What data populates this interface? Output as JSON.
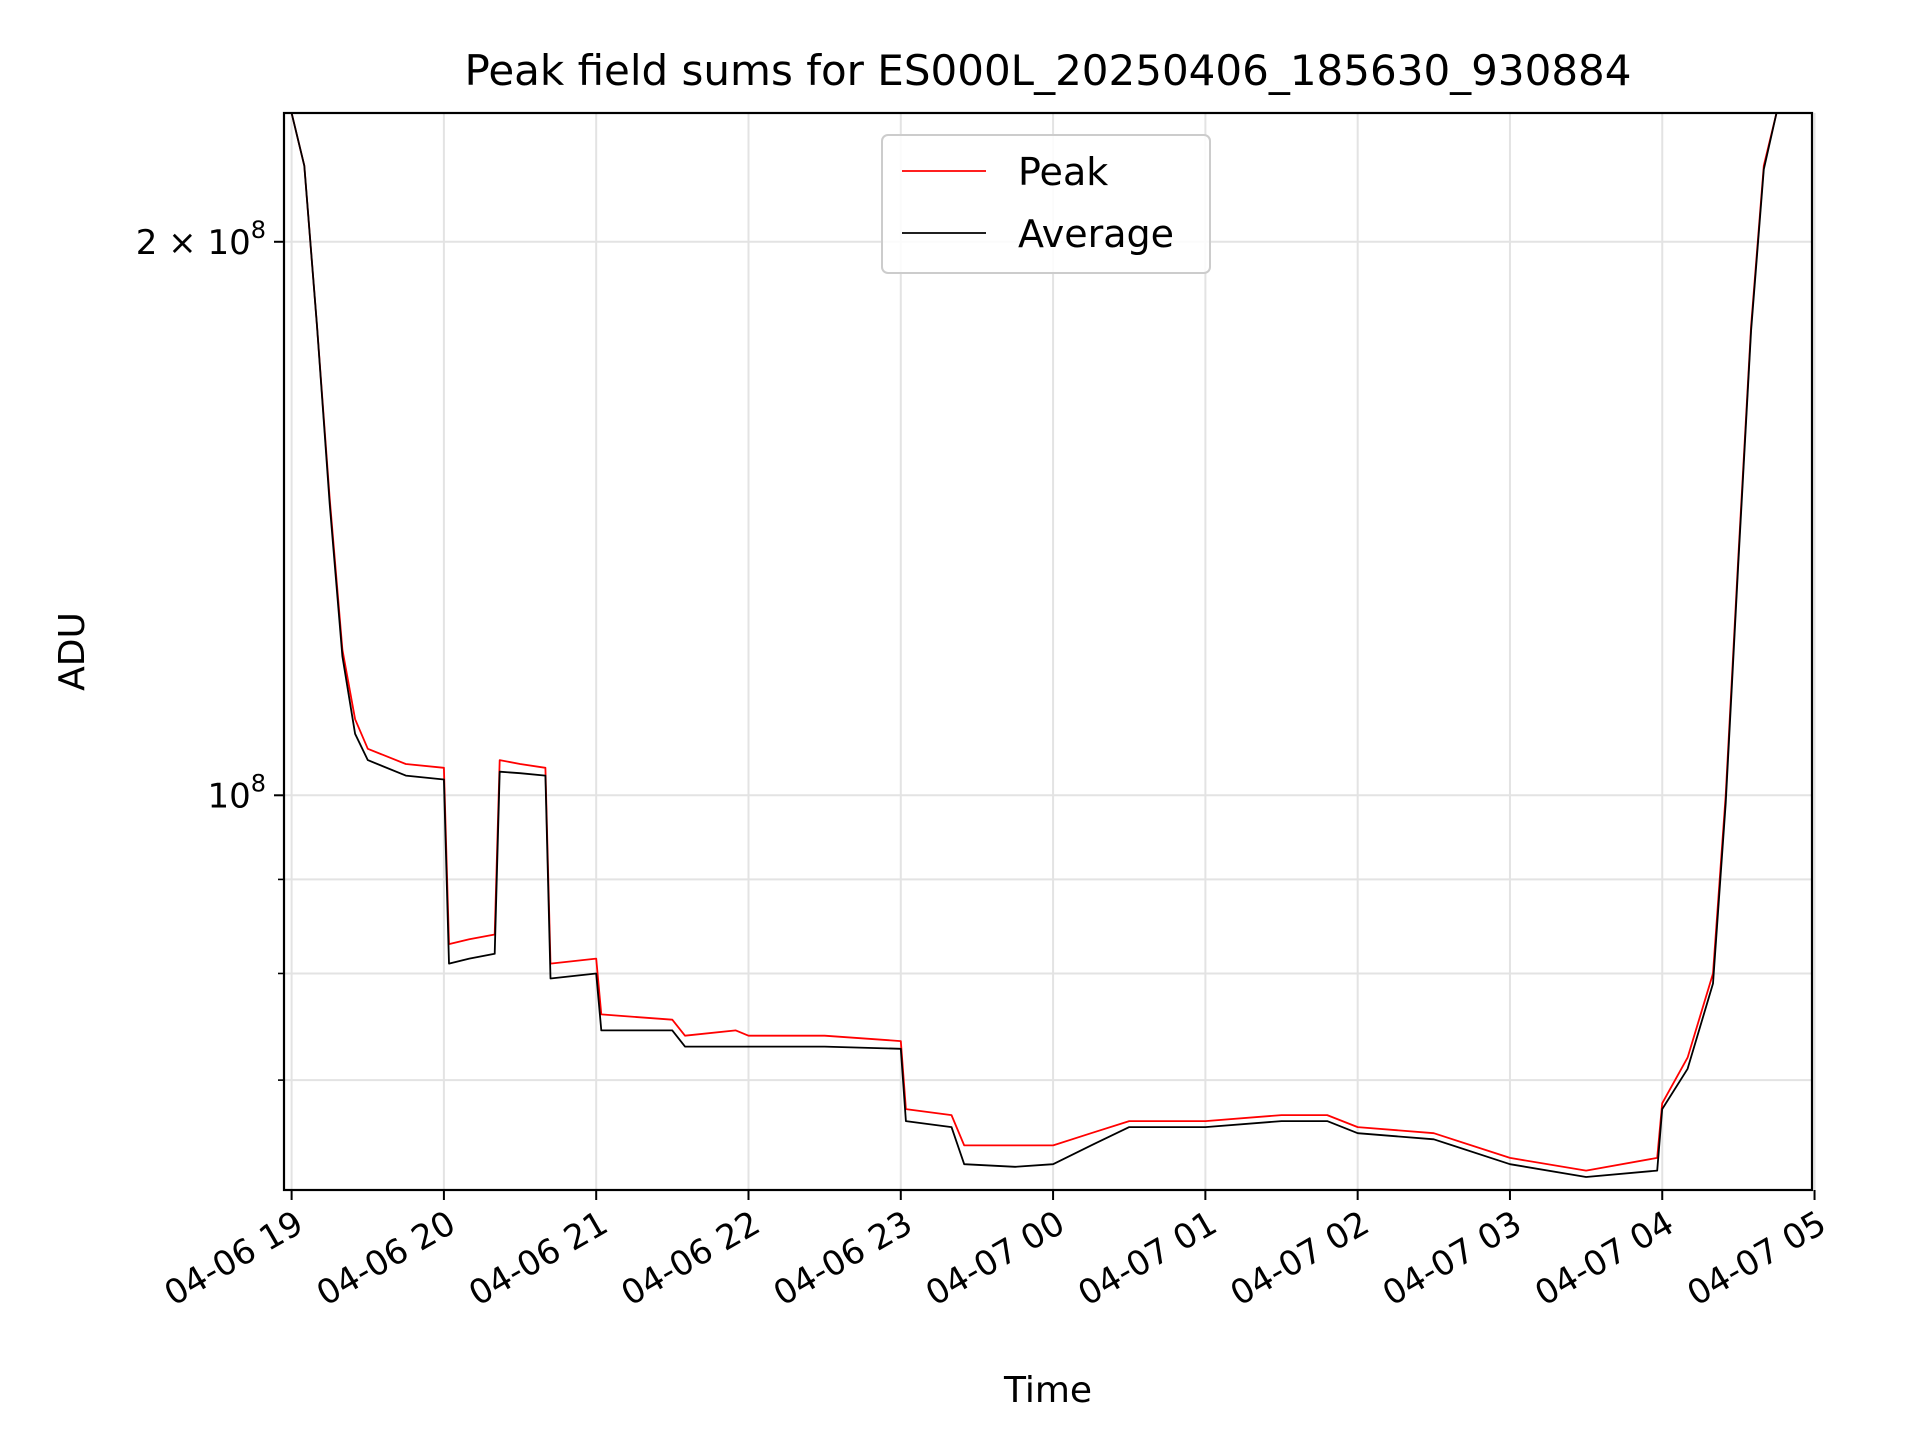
{
  "chart_data": {
    "type": "line",
    "title": "Peak field sums for ES000L_20250406_185630_930884",
    "xlabel": "Time",
    "ylabel": "ADU",
    "yscale": "log",
    "grid": true,
    "legend_position": "top-center",
    "xlim": [
      "2025-04-06 18:57",
      "2025-04-07 04:59"
    ],
    "ylim": [
      61000000,
      235000000
    ],
    "x_ticks": [
      {
        "value": "2025-04-06 19:00",
        "label": "04-06 19"
      },
      {
        "value": "2025-04-06 20:00",
        "label": "04-06 20"
      },
      {
        "value": "2025-04-06 21:00",
        "label": "04-06 21"
      },
      {
        "value": "2025-04-06 22:00",
        "label": "04-06 22"
      },
      {
        "value": "2025-04-06 23:00",
        "label": "04-06 23"
      },
      {
        "value": "2025-04-07 00:00",
        "label": "04-07 00"
      },
      {
        "value": "2025-04-07 01:00",
        "label": "04-07 01"
      },
      {
        "value": "2025-04-07 02:00",
        "label": "04-07 02"
      },
      {
        "value": "2025-04-07 03:00",
        "label": "04-07 03"
      },
      {
        "value": "2025-04-07 04:00",
        "label": "04-07 04"
      },
      {
        "value": "2025-04-07 05:00",
        "label": "04-07 05"
      }
    ],
    "y_major_ticks": [
      {
        "value": 100000000,
        "base": "10",
        "exp": "8",
        "prefix": ""
      },
      {
        "value": 200000000,
        "base": "10",
        "exp": "8",
        "prefix": "2 × "
      }
    ],
    "y_minor_ticks": [
      70000000,
      80000000,
      90000000
    ],
    "series": [
      {
        "name": "Peak",
        "color": "#ff0000",
        "points": [
          [
            "2025-04-06 19:00",
            235000000
          ],
          [
            "2025-04-06 19:05",
            220000000
          ],
          [
            "2025-04-06 19:10",
            180000000
          ],
          [
            "2025-04-06 19:15",
            145000000
          ],
          [
            "2025-04-06 19:20",
            120000000
          ],
          [
            "2025-04-06 19:25",
            110000000
          ],
          [
            "2025-04-06 19:30",
            106000000
          ],
          [
            "2025-04-06 19:45",
            104000000
          ],
          [
            "2025-04-06 20:00",
            103500000
          ],
          [
            "2025-04-06 20:02",
            83000000
          ],
          [
            "2025-04-06 20:10",
            83500000
          ],
          [
            "2025-04-06 20:20",
            84000000
          ],
          [
            "2025-04-06 20:22",
            104500000
          ],
          [
            "2025-04-06 20:30",
            104000000
          ],
          [
            "2025-04-06 20:40",
            103500000
          ],
          [
            "2025-04-06 20:42",
            81000000
          ],
          [
            "2025-04-06 21:00",
            81500000
          ],
          [
            "2025-04-06 21:02",
            76000000
          ],
          [
            "2025-04-06 21:30",
            75500000
          ],
          [
            "2025-04-06 21:35",
            74000000
          ],
          [
            "2025-04-06 21:55",
            74500000
          ],
          [
            "2025-04-06 22:00",
            74000000
          ],
          [
            "2025-04-06 22:30",
            74000000
          ],
          [
            "2025-04-06 23:00",
            73500000
          ],
          [
            "2025-04-06 23:02",
            67500000
          ],
          [
            "2025-04-06 23:20",
            67000000
          ],
          [
            "2025-04-06 23:25",
            64500000
          ],
          [
            "2025-04-06 23:45",
            64500000
          ],
          [
            "2025-04-07 00:00",
            64500000
          ],
          [
            "2025-04-07 00:15",
            65500000
          ],
          [
            "2025-04-07 00:30",
            66500000
          ],
          [
            "2025-04-07 01:00",
            66500000
          ],
          [
            "2025-04-07 01:30",
            67000000
          ],
          [
            "2025-04-07 01:48",
            67000000
          ],
          [
            "2025-04-07 02:00",
            66000000
          ],
          [
            "2025-04-07 02:30",
            65500000
          ],
          [
            "2025-04-07 03:00",
            63500000
          ],
          [
            "2025-04-07 03:30",
            62500000
          ],
          [
            "2025-04-07 03:58",
            63500000
          ],
          [
            "2025-04-07 04:00",
            68000000
          ],
          [
            "2025-04-07 04:10",
            72000000
          ],
          [
            "2025-04-07 04:20",
            80000000
          ],
          [
            "2025-04-07 04:25",
            100000000
          ],
          [
            "2025-04-07 04:30",
            135000000
          ],
          [
            "2025-04-07 04:35",
            180000000
          ],
          [
            "2025-04-07 04:40",
            220000000
          ],
          [
            "2025-04-07 04:45",
            235000000
          ]
        ]
      },
      {
        "name": "Average",
        "color": "#000000",
        "points": [
          [
            "2025-04-06 19:00",
            235000000
          ],
          [
            "2025-04-06 19:05",
            220000000
          ],
          [
            "2025-04-06 19:10",
            180000000
          ],
          [
            "2025-04-06 19:15",
            144000000
          ],
          [
            "2025-04-06 19:20",
            119000000
          ],
          [
            "2025-04-06 19:25",
            108000000
          ],
          [
            "2025-04-06 19:30",
            104500000
          ],
          [
            "2025-04-06 19:45",
            102500000
          ],
          [
            "2025-04-06 20:00",
            102000000
          ],
          [
            "2025-04-06 20:02",
            81000000
          ],
          [
            "2025-04-06 20:10",
            81500000
          ],
          [
            "2025-04-06 20:20",
            82000000
          ],
          [
            "2025-04-06 20:22",
            103000000
          ],
          [
            "2025-04-06 20:30",
            102800000
          ],
          [
            "2025-04-06 20:40",
            102500000
          ],
          [
            "2025-04-06 20:42",
            79500000
          ],
          [
            "2025-04-06 21:00",
            80000000
          ],
          [
            "2025-04-06 21:02",
            74500000
          ],
          [
            "2025-04-06 21:30",
            74500000
          ],
          [
            "2025-04-06 21:35",
            73000000
          ],
          [
            "2025-04-06 21:55",
            73000000
          ],
          [
            "2025-04-06 22:00",
            73000000
          ],
          [
            "2025-04-06 22:30",
            73000000
          ],
          [
            "2025-04-06 23:00",
            72800000
          ],
          [
            "2025-04-06 23:02",
            66500000
          ],
          [
            "2025-04-06 23:20",
            66000000
          ],
          [
            "2025-04-06 23:25",
            63000000
          ],
          [
            "2025-04-06 23:45",
            62800000
          ],
          [
            "2025-04-07 00:00",
            63000000
          ],
          [
            "2025-04-07 00:15",
            64500000
          ],
          [
            "2025-04-07 00:30",
            66000000
          ],
          [
            "2025-04-07 01:00",
            66000000
          ],
          [
            "2025-04-07 01:30",
            66500000
          ],
          [
            "2025-04-07 01:48",
            66500000
          ],
          [
            "2025-04-07 02:00",
            65500000
          ],
          [
            "2025-04-07 02:30",
            65000000
          ],
          [
            "2025-04-07 03:00",
            63000000
          ],
          [
            "2025-04-07 03:30",
            62000000
          ],
          [
            "2025-04-07 03:58",
            62500000
          ],
          [
            "2025-04-07 04:00",
            67500000
          ],
          [
            "2025-04-07 04:10",
            71000000
          ],
          [
            "2025-04-07 04:20",
            79000000
          ],
          [
            "2025-04-07 04:25",
            99000000
          ],
          [
            "2025-04-07 04:30",
            134000000
          ],
          [
            "2025-04-07 04:35",
            179000000
          ],
          [
            "2025-04-07 04:40",
            219000000
          ],
          [
            "2025-04-07 04:45",
            235000000
          ]
        ]
      }
    ]
  }
}
